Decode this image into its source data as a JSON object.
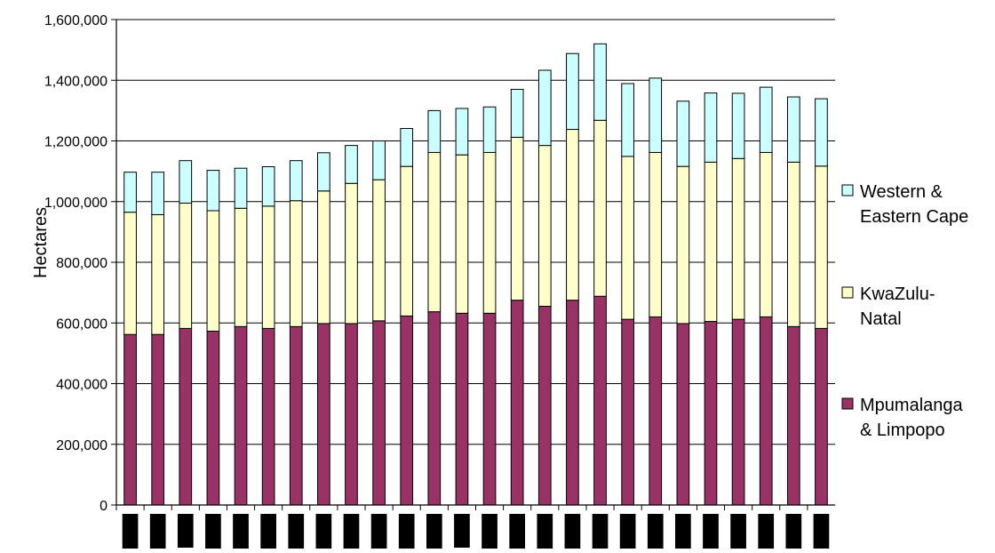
{
  "chart_data": {
    "type": "bar",
    "stacked": true,
    "title": "",
    "xlabel": "",
    "ylabel": "Hectares",
    "ylim": [
      0,
      1600000
    ],
    "ytick_step": 200000,
    "yticks": [
      "0",
      "200,000",
      "400,000",
      "600,000",
      "800,000",
      "1,000,000",
      "1,200,000",
      "1,400,000",
      "1,600,000"
    ],
    "grid": "horizontal",
    "legend_position": "right",
    "categories": [
      "",
      "",
      "",
      "",
      "",
      "",
      "",
      "",
      "",
      "",
      "",
      "",
      "",
      "",
      "",
      "",
      "",
      "",
      "",
      "",
      "",
      "",
      "",
      "",
      "",
      ""
    ],
    "series": [
      {
        "name": "Mpumalanga & Limpopo",
        "color": "#993366",
        "values": [
          562000,
          562000,
          582000,
          573000,
          588000,
          582000,
          588000,
          598000,
          598000,
          607000,
          623000,
          637000,
          632000,
          632000,
          675000,
          655000,
          675000,
          688000,
          612000,
          620000,
          598000,
          605000,
          612000,
          620000,
          588000,
          582000
        ]
      },
      {
        "name": "KwaZulu-Natal",
        "color": "#FFFFCC",
        "values": [
          403000,
          395000,
          413000,
          397000,
          390000,
          403000,
          415000,
          437000,
          462000,
          465000,
          493000,
          525000,
          522000,
          530000,
          537000,
          530000,
          563000,
          580000,
          537000,
          542000,
          518000,
          525000,
          530000,
          542000,
          542000,
          535000
        ]
      },
      {
        "name": "Western & Eastern Cape",
        "color": "#CCFFFF",
        "values": [
          132000,
          140000,
          140000,
          133000,
          132000,
          130000,
          132000,
          126000,
          125000,
          128000,
          125000,
          138000,
          153000,
          150000,
          158000,
          248000,
          250000,
          252000,
          240000,
          245000,
          215000,
          228000,
          215000,
          215000,
          215000,
          222000
        ]
      }
    ]
  }
}
